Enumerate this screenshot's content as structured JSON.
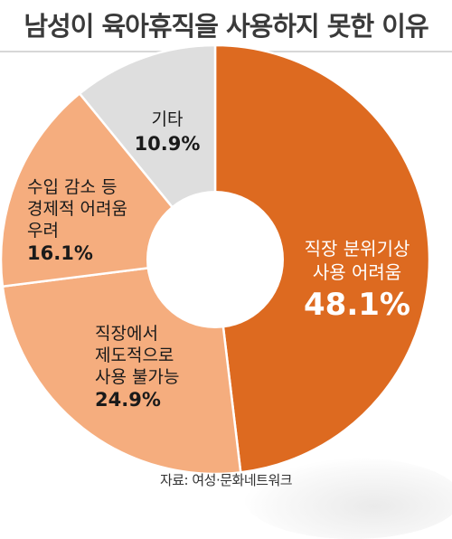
{
  "title": "남성이 육아휴직을 사용하지 못한 이유",
  "source": "자료: 여성·문화네트워크",
  "chart_data": {
    "type": "pie",
    "donut": true,
    "title": "남성이 육아휴직을 사용하지 못한 이유",
    "slices": [
      {
        "label_lines": [
          "직장 분위기상",
          "사용 어려움"
        ],
        "value": 48.1,
        "value_text": "48.1%",
        "color": "#dd6a20",
        "text_color": "#ffffff"
      },
      {
        "label_lines": [
          "직장에서",
          "제도적으로",
          "사용 불가능"
        ],
        "value": 24.9,
        "value_text": "24.9%",
        "color": "#f5ad7e",
        "text_color": "#1a1a1a"
      },
      {
        "label_lines": [
          "수입 감소 등",
          "경제적 어려움",
          "우려"
        ],
        "value": 16.1,
        "value_text": "16.1%",
        "color": "#f5ad7e",
        "text_color": "#1a1a1a"
      },
      {
        "label_lines": [
          "기타"
        ],
        "value": 10.9,
        "value_text": "10.9%",
        "color": "#dedede",
        "text_color": "#1a1a1a"
      }
    ]
  }
}
